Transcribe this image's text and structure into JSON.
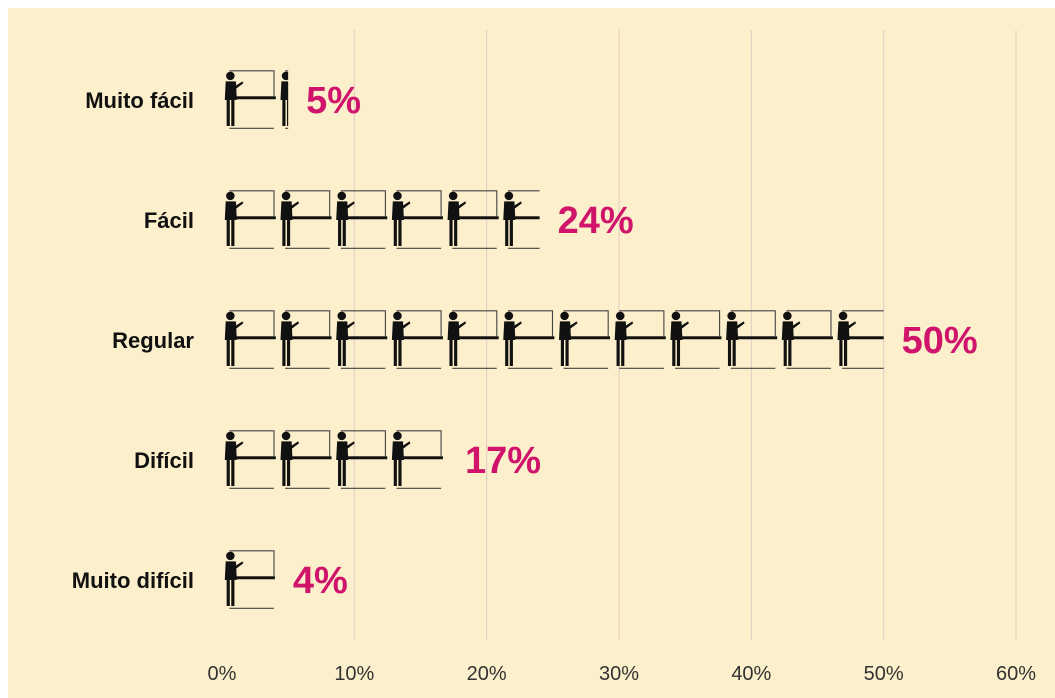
{
  "chart_data": {
    "type": "bar",
    "orientation": "horizontal",
    "style": "pictograph",
    "icon": "person-at-desk-icon",
    "categories": [
      "Muito fácil",
      "Fácil",
      "Regular",
      "Difícil",
      "Muito difícil"
    ],
    "values": [
      5,
      24,
      50,
      17,
      4
    ],
    "value_labels": [
      "5%",
      "24%",
      "50%",
      "17%",
      "4%"
    ],
    "x_ticks": [
      0,
      10,
      20,
      30,
      40,
      50,
      60
    ],
    "x_tick_labels": [
      "0%",
      "10%",
      "20%",
      "30%",
      "40%",
      "50%",
      "60%"
    ],
    "xlim": [
      0,
      60
    ],
    "title": "",
    "xlabel": "",
    "ylabel": "",
    "grid": "vertical",
    "legend": "none",
    "colors": {
      "background": "#fcefcb",
      "grid": "#e3c9c3",
      "icon": "#111111",
      "value_label": "#d0146c"
    }
  }
}
